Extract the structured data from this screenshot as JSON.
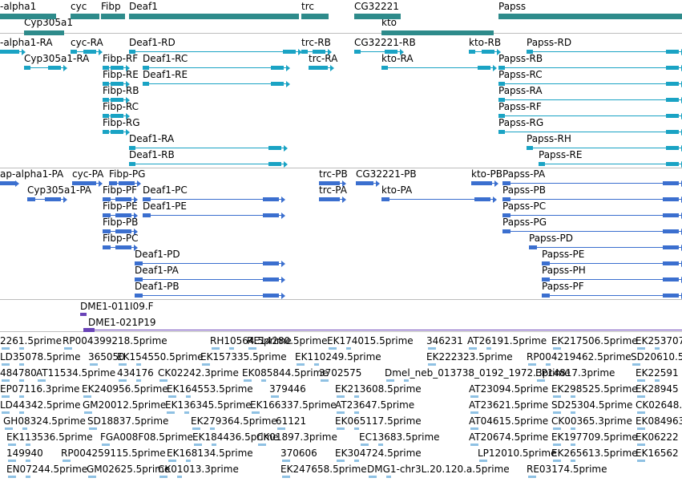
{
  "colors": {
    "gene": "#2e8b8b",
    "rna": "#1aa3c4",
    "protein": "#3b6fcf",
    "clone": "#6a44b8",
    "est": "#8fc1e3",
    "separator": "#bdbdbd"
  },
  "tracks": {
    "genes": {
      "labels": [
        "-alpha1",
        "Cyp305a1",
        "cyc",
        "Fibp",
        "Deaf1",
        "trc",
        "CG32221",
        "kto",
        "Papss"
      ]
    },
    "transcripts": {
      "labels": [
        "-alpha1-RA",
        "cyc-RA",
        "Deaf1-RD",
        "trc-RB",
        "CG32221-RB",
        "kto-RB",
        "Papss-RD",
        "Cyp305a1-RA",
        "Fibp-RF",
        "Deaf1-RC",
        "trc-RA",
        "kto-RA",
        "Papss-RB",
        "Fibp-RE",
        "Deaf1-RE",
        "Papss-RC",
        "Fibp-RB",
        "Papss-RA",
        "Fibp-RC",
        "Papss-RF",
        "Fibp-RG",
        "Papss-RG",
        "Deaf1-RA",
        "Papss-RH",
        "Deaf1-RB",
        "Papss-RE"
      ]
    },
    "proteins": {
      "labels": [
        "ap-alpha1-PA",
        "cyc-PA",
        "Fibp-PG",
        "trc-PB",
        "CG32221-PB",
        "kto-PB",
        "Papss-PA",
        "Cyp305a1-PA",
        "Fibp-PF",
        "Deaf1-PC",
        "trc-PA",
        "kto-PA",
        "Papss-PB",
        "Fibp-PE",
        "Deaf1-PE",
        "Papss-PC",
        "Fibp-PB",
        "Papss-PG",
        "Fibp-PC",
        "Papss-PD",
        "Deaf1-PD",
        "Papss-PE",
        "Deaf1-PA",
        "Papss-PH",
        "Deaf1-PB",
        "Papss-PF"
      ]
    },
    "clones": {
      "labels": [
        "DME1-011I09.F",
        "DME1-021P19"
      ]
    },
    "ests": {
      "rows": [
        [
          "2261.5prime",
          "RP004399218.5prime",
          "RH10564.5prime",
          "RE14280.5prime",
          "EK174015.5prime",
          "346231",
          "AT26191.5prime",
          "EK217506.5prime",
          "EK253707"
        ],
        [
          "LD35078.5prime",
          "365050",
          "EK154550.5prime",
          "EK157335.5prime",
          "EK110249.5prime",
          "EK222323.5prime",
          "RP004219462.5prime",
          "SD20610.5"
        ],
        [
          "484780",
          "AT11534.5prime",
          "434176",
          "CK02242.3prime",
          "EK085844.5prime",
          "3702575",
          "Dmel_neb_013738_0192_1972.3prime",
          "EP14817.3prime",
          "EK22591"
        ],
        [
          "EP07116.3prime",
          "EK240956.5prime",
          "EK164553.5prime",
          "379446",
          "EK213608.5prime",
          "AT23094.5prime",
          "EK298525.5prime",
          "EK28945"
        ],
        [
          "LD44342.5prime",
          "GM20012.5prime",
          "EK136345.5prime",
          "EK166337.5prime",
          "AT23647.5prime",
          "AT23621.5prime",
          "SD25304.5prime",
          "CK02648.3"
        ],
        [
          "GH08324.5prime",
          "SD18837.5prime",
          "EK279364.5prime",
          "61121",
          "EK065117.5prime",
          "AT04615.5prime",
          "CK00365.3prime",
          "EK084963"
        ],
        [
          "EK113536.5prime",
          "FGA008F08.5prime",
          "EK184436.5prime",
          "CK01897.3prime",
          "EC13683.5prime",
          "AT20674.5prime",
          "EK197709.5prime",
          "EK06222"
        ],
        [
          "149940",
          "RP004259115.5prime",
          "EK168134.5prime",
          "370606",
          "EK304724.5prime",
          "LP12010.5prime",
          "EK265613.5prime",
          "EK16562"
        ],
        [
          "EN07244.5prime",
          "GM02625.5prime",
          "CK01013.3prime",
          "EK247658.5prime",
          "DMG1-chr3L.20.120.a.5prime",
          "RE03174.5prime"
        ]
      ]
    }
  }
}
